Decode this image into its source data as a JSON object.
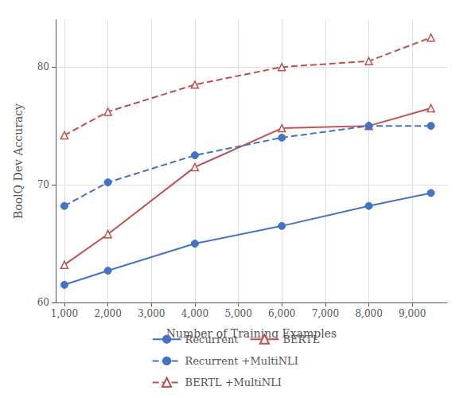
{
  "chart_data": {
    "type": "line",
    "xlabel": "Number of Training Examples",
    "ylabel": "BoolQ Dev Accuracy",
    "x": [
      1000,
      2000,
      4000,
      6000,
      8000,
      9427
    ],
    "series": [
      {
        "name": "Recurrent",
        "color": "#4472C4",
        "marker": "circle",
        "line_style": "solid",
        "values": [
          61.5,
          62.7,
          65.0,
          66.5,
          68.2,
          69.3
        ]
      },
      {
        "name": "BERTL",
        "color": "#C0504D",
        "marker": "triangle",
        "line_style": "solid",
        "values": [
          63.2,
          65.8,
          71.5,
          74.8,
          75.0,
          76.5
        ]
      },
      {
        "name": "Recurrent +MultiNLI",
        "color": "#4472C4",
        "marker": "circle",
        "line_style": "dashed",
        "values": [
          68.2,
          70.2,
          72.5,
          74.0,
          75.0,
          75.0
        ]
      },
      {
        "name": "BERTL +MultiNLI",
        "color": "#C0504D",
        "marker": "triangle",
        "line_style": "dashed",
        "values": [
          74.2,
          76.2,
          78.5,
          80.0,
          80.5,
          82.5
        ]
      }
    ],
    "xlim": [
      800,
      9800
    ],
    "xticks": [
      {
        "value": 1000,
        "label": "1,000"
      },
      {
        "value": 2000,
        "label": "2,000"
      },
      {
        "value": 3000,
        "label": "3,000"
      },
      {
        "value": 4000,
        "label": "4,000"
      },
      {
        "value": 5000,
        "label": "5,000"
      },
      {
        "value": 6000,
        "label": "6,000"
      },
      {
        "value": 7000,
        "label": "7,000"
      },
      {
        "value": 8000,
        "label": "8,000"
      },
      {
        "value": 9000,
        "label": "9,000"
      }
    ],
    "ylim": [
      60,
      84
    ],
    "yticks": [
      60,
      70,
      80
    ],
    "grid": true,
    "legend": "bottom"
  }
}
